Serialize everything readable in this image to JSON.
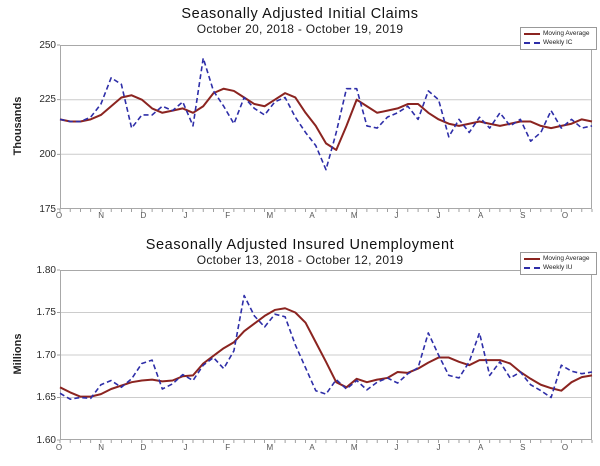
{
  "accent_colors": {
    "moving_average": "#8B2420",
    "weekly": "#2E2EA8",
    "grid": "#cccccc",
    "plot_border": "#a8a8a8",
    "tick": "#888888"
  },
  "chart_data": [
    {
      "type": "line",
      "title": "Seasonally Adjusted Initial Claims",
      "subtitle": "October 20, 2018 - October 19, 2019",
      "ylabel": "Thousands",
      "ylim": [
        175,
        250
      ],
      "y_tick_labels": [
        "250",
        "225",
        "200",
        "175"
      ],
      "y_tick_values": [
        250,
        225,
        200,
        175
      ],
      "x_tick_labels": [
        "O",
        "N",
        "D",
        "J",
        "F",
        "M",
        "A",
        "M",
        "J",
        "J",
        "A",
        "S",
        "O"
      ],
      "n_weeks": 53,
      "grid": "horizontal",
      "legend_position": "top-right",
      "series": [
        {
          "name": "Moving Average",
          "color": "#8B2420",
          "line_style": "solid",
          "values": [
            216,
            215,
            215,
            216,
            218,
            222,
            226,
            227,
            225,
            221,
            219,
            220,
            221,
            219,
            222,
            228,
            230,
            229,
            226,
            223,
            222,
            225,
            228,
            226,
            219,
            213,
            205,
            202,
            213,
            225,
            222,
            219,
            220,
            221,
            223,
            223,
            219,
            216,
            214,
            213,
            214,
            215,
            214,
            213,
            214,
            215,
            215,
            213,
            212,
            213,
            214,
            216,
            215
          ]
        },
        {
          "name": "Weekly IC",
          "color": "#2E2EA8",
          "line_style": "dashed",
          "values": [
            216,
            215,
            215,
            217,
            223,
            235,
            232,
            212,
            218,
            218,
            222,
            220,
            224,
            213,
            244,
            229,
            222,
            214,
            226,
            221,
            218,
            224,
            226,
            217,
            210,
            204,
            193,
            210,
            230,
            230,
            213,
            212,
            217,
            219,
            222,
            216,
            229,
            225,
            208,
            216,
            210,
            217,
            212,
            219,
            213,
            216,
            206,
            210,
            220,
            212,
            216,
            212,
            213
          ]
        }
      ]
    },
    {
      "type": "line",
      "title": "Seasonally Adjusted Insured Unemployment",
      "subtitle": "October 13, 2018 - October 12, 2019",
      "ylabel": "Millions",
      "ylim": [
        1.6,
        1.8
      ],
      "y_tick_labels": [
        "1.80",
        "1.75",
        "1.70",
        "1.65",
        "1.60"
      ],
      "y_tick_values": [
        1.8,
        1.75,
        1.7,
        1.65,
        1.6
      ],
      "x_tick_labels": [
        "O",
        "N",
        "D",
        "J",
        "F",
        "M",
        "A",
        "M",
        "J",
        "J",
        "A",
        "S",
        "O"
      ],
      "n_weeks": 53,
      "grid": "horizontal",
      "legend_position": "top-right",
      "series": [
        {
          "name": "Moving Average",
          "color": "#8B2420",
          "line_style": "solid",
          "values": [
            1.662,
            1.656,
            1.651,
            1.651,
            1.654,
            1.66,
            1.664,
            1.668,
            1.67,
            1.671,
            1.669,
            1.67,
            1.675,
            1.676,
            1.69,
            1.699,
            1.708,
            1.715,
            1.728,
            1.737,
            1.746,
            1.753,
            1.755,
            1.75,
            1.738,
            1.715,
            1.692,
            1.668,
            1.662,
            1.672,
            1.668,
            1.671,
            1.673,
            1.68,
            1.679,
            1.684,
            1.691,
            1.697,
            1.697,
            1.692,
            1.688,
            1.694,
            1.694,
            1.694,
            1.69,
            1.68,
            1.672,
            1.665,
            1.661,
            1.658,
            1.668,
            1.674,
            1.676
          ]
        },
        {
          "name": "Weekly IU",
          "color": "#2E2EA8",
          "line_style": "dashed",
          "values": [
            1.655,
            1.648,
            1.65,
            1.649,
            1.665,
            1.67,
            1.662,
            1.672,
            1.69,
            1.694,
            1.66,
            1.666,
            1.677,
            1.67,
            1.688,
            1.697,
            1.684,
            1.705,
            1.77,
            1.746,
            1.733,
            1.748,
            1.745,
            1.712,
            1.685,
            1.658,
            1.654,
            1.671,
            1.66,
            1.67,
            1.659,
            1.668,
            1.673,
            1.667,
            1.678,
            1.685,
            1.726,
            1.7,
            1.676,
            1.673,
            1.692,
            1.726,
            1.676,
            1.692,
            1.673,
            1.68,
            1.665,
            1.658,
            1.65,
            1.688,
            1.681,
            1.678,
            1.68
          ]
        }
      ]
    }
  ]
}
